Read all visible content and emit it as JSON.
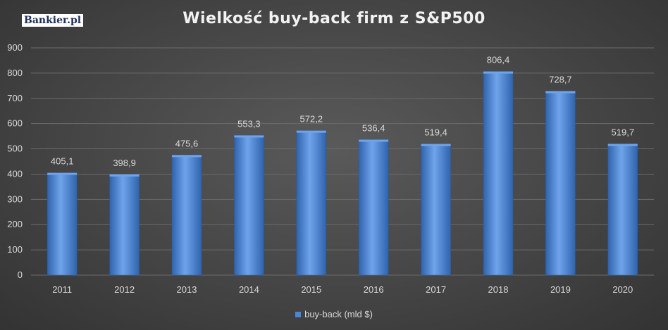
{
  "logo": "Bankier.pl",
  "chart_data": {
    "type": "bar",
    "title": "Wielkość buy-back firm z S&P500",
    "categories": [
      "2011",
      "2012",
      "2013",
      "2014",
      "2015",
      "2016",
      "2017",
      "2018",
      "2019",
      "2020"
    ],
    "series": [
      {
        "name": "buy-back (mld $)",
        "values": [
          405.1,
          398.9,
          475.6,
          553.3,
          572.2,
          536.4,
          519.4,
          806.4,
          728.7,
          519.7
        ],
        "labels": [
          "405,1",
          "398,9",
          "475,6",
          "553,3",
          "572,2",
          "536,4",
          "519,4",
          "806,4",
          "728,7",
          "519,7"
        ]
      }
    ],
    "yticks": [
      "0",
      "100",
      "200",
      "300",
      "400",
      "500",
      "600",
      "700",
      "800",
      "900"
    ],
    "ylim": [
      0,
      900
    ],
    "grid": true,
    "legend_position": "bottom",
    "colors": {
      "bar": "#4a86d8",
      "bar_light": "#6fa3ea",
      "bar_dark": "#2f63ad",
      "grid": "#6b6b6b",
      "text": "#d9d9d9"
    }
  }
}
